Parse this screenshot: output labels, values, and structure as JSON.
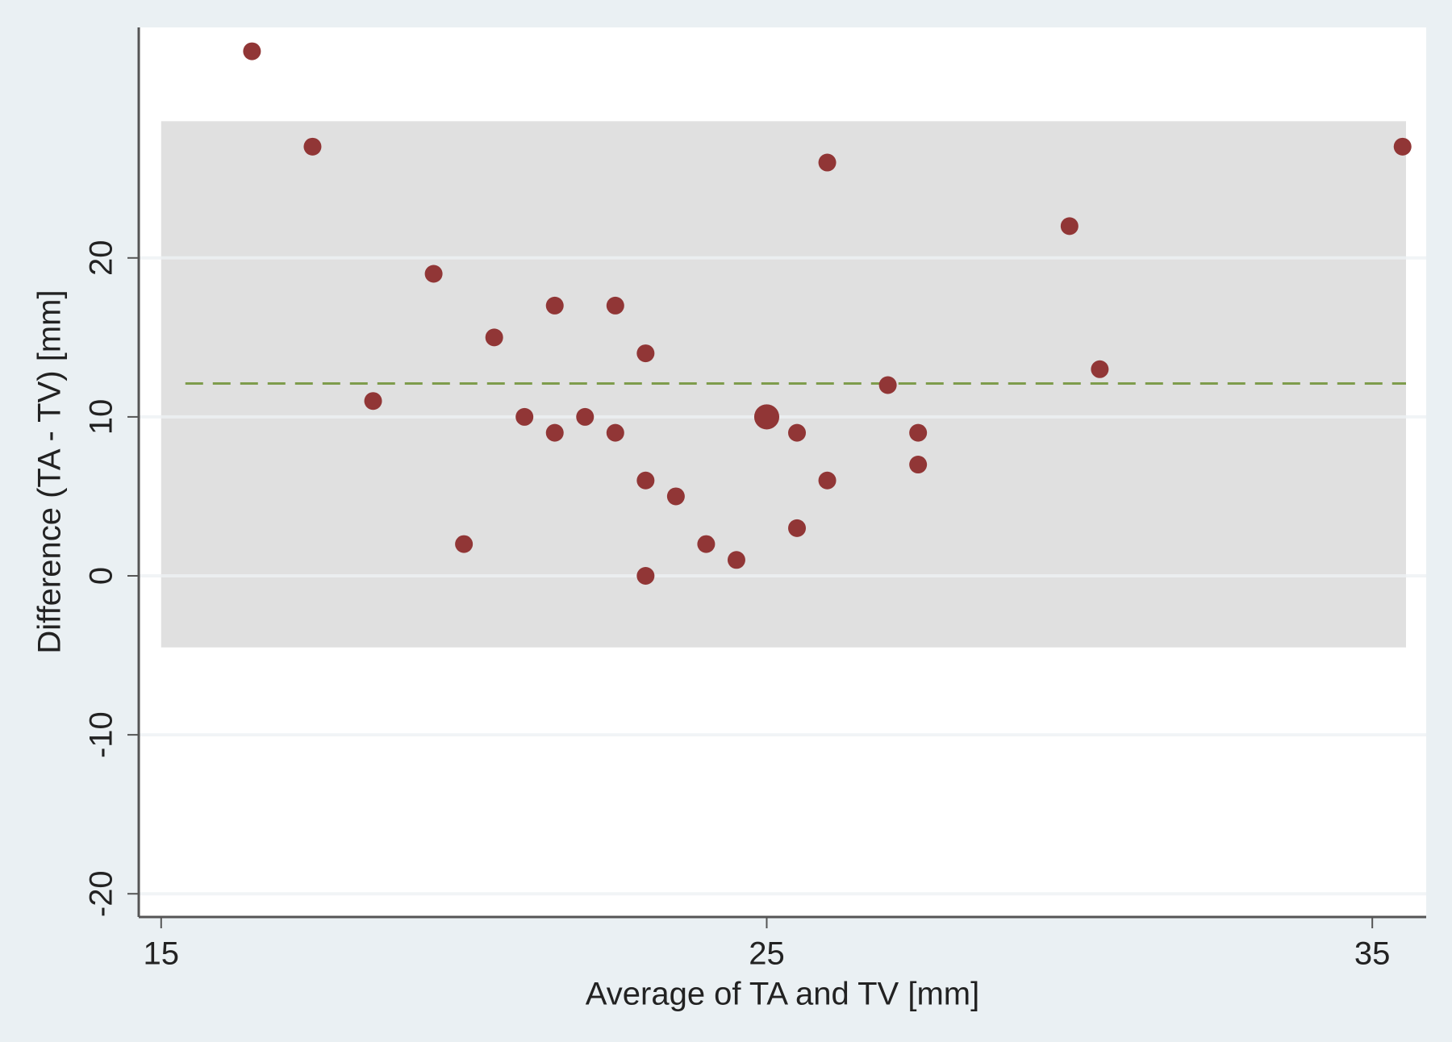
{
  "chart_data": {
    "type": "scatter",
    "x_label": "Average of TA and TV [mm]",
    "y_label": "Difference (TA - TV) [mm]",
    "x": [
      16.5,
      17.5,
      18.5,
      19.5,
      20,
      20.5,
      21,
      21.5,
      21.5,
      22,
      22.5,
      22.5,
      23,
      23,
      23,
      23.5,
      24,
      24.5,
      25,
      25.5,
      25.5,
      26,
      26,
      27,
      27.5,
      27.5,
      30,
      30.5,
      35.5
    ],
    "values": [
      33,
      27,
      11,
      19,
      2,
      15,
      10,
      17,
      9,
      10,
      17,
      9,
      14,
      6,
      0,
      5,
      2,
      1,
      10,
      9,
      3,
      26,
      6,
      12,
      9,
      7,
      22,
      13,
      27
    ],
    "sizes": [
      1,
      1,
      1,
      1,
      1,
      1,
      1,
      1,
      1,
      1,
      1,
      1,
      1,
      1,
      1,
      1,
      1,
      1,
      2,
      1,
      1,
      1,
      1,
      1,
      1,
      1,
      1,
      1,
      1
    ],
    "color": "#913636",
    "mean_difference": 12.1,
    "mean_color": "#7e9c4c",
    "limits_of_agreement": [
      -4.5,
      28.6
    ],
    "band_color": "#e0e0e0",
    "xlim": [
      14.63,
      35.89
    ],
    "ylim": [
      -21.46,
      34.5
    ],
    "xticks": [
      15,
      25,
      35
    ],
    "yticks": [
      -20,
      -10,
      0,
      10,
      20
    ],
    "grid": true
  }
}
